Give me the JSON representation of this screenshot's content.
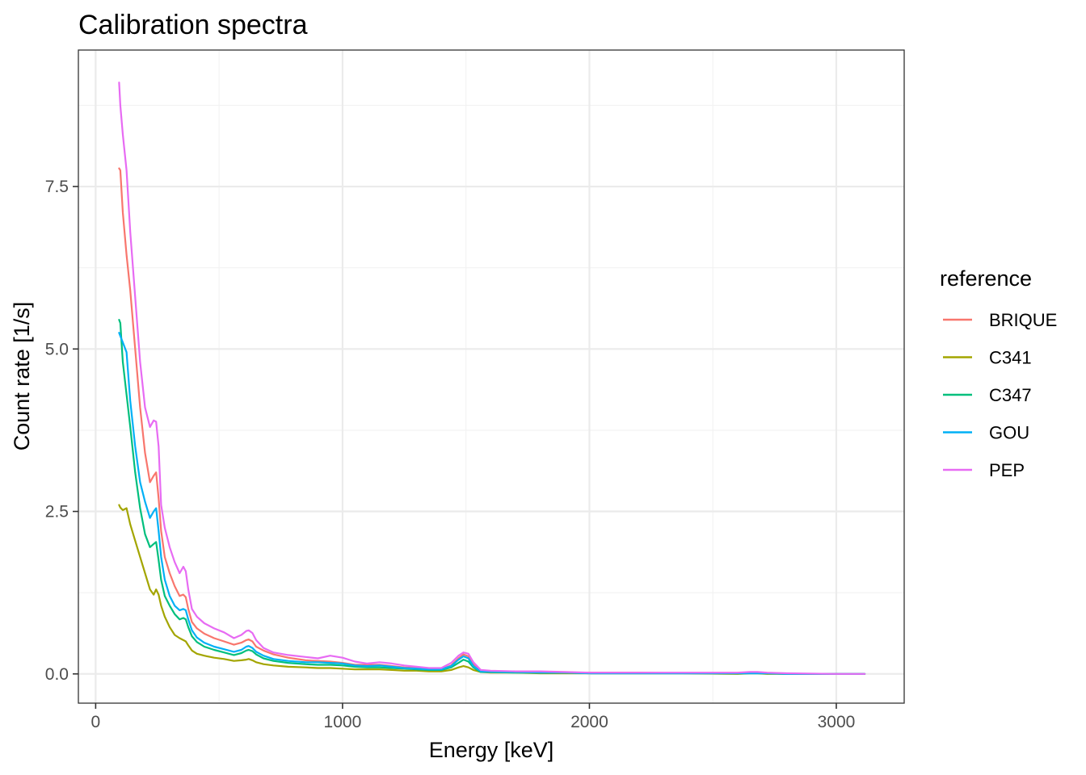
{
  "chart_data": {
    "type": "line",
    "title": "Calibration spectra",
    "xlabel": "Energy [keV]",
    "ylabel": "Count rate [1/s]",
    "xlim": [
      -70,
      3275
    ],
    "ylim": [
      -0.45,
      9.6
    ],
    "x_ticks": [
      0,
      1000,
      2000,
      3000
    ],
    "x_tick_labels": [
      "0",
      "1000",
      "2000",
      "3000"
    ],
    "y_ticks": [
      0,
      2.5,
      5,
      7.5
    ],
    "y_tick_labels": [
      "0.0",
      "2.5",
      "5.0",
      "7.5"
    ],
    "grid": true,
    "legend": {
      "title": "reference",
      "position": "right"
    },
    "x": [
      95,
      100,
      110,
      125,
      140,
      160,
      180,
      200,
      220,
      235,
      245,
      255,
      265,
      280,
      300,
      320,
      340,
      355,
      365,
      375,
      390,
      410,
      440,
      480,
      520,
      560,
      590,
      610,
      620,
      635,
      650,
      680,
      720,
      780,
      850,
      900,
      950,
      1000,
      1050,
      1100,
      1150,
      1200,
      1250,
      1300,
      1350,
      1400,
      1440,
      1470,
      1490,
      1510,
      1530,
      1560,
      1600,
      1700,
      1800,
      1900,
      2000,
      2200,
      2400,
      2600,
      2650,
      2680,
      2720,
      2800,
      3000,
      3115
    ],
    "series": [
      {
        "name": "BRIQUE",
        "color": "#F8766D",
        "values": [
          7.78,
          7.75,
          7.1,
          6.45,
          5.9,
          5.0,
          4.1,
          3.4,
          2.95,
          3.05,
          3.1,
          2.7,
          2.2,
          1.8,
          1.55,
          1.35,
          1.2,
          1.22,
          1.18,
          1.0,
          0.8,
          0.7,
          0.62,
          0.55,
          0.5,
          0.45,
          0.48,
          0.52,
          0.53,
          0.5,
          0.42,
          0.36,
          0.3,
          0.25,
          0.21,
          0.2,
          0.19,
          0.17,
          0.14,
          0.14,
          0.14,
          0.12,
          0.1,
          0.09,
          0.07,
          0.07,
          0.13,
          0.24,
          0.3,
          0.27,
          0.15,
          0.05,
          0.04,
          0.03,
          0.03,
          0.02,
          0.02,
          0.02,
          0.01,
          0.01,
          0.02,
          0.02,
          0.01,
          0.0,
          0.0,
          0.0
        ]
      },
      {
        "name": "C341",
        "color": "#A3A500",
        "values": [
          2.6,
          2.56,
          2.52,
          2.55,
          2.3,
          2.05,
          1.8,
          1.55,
          1.3,
          1.22,
          1.3,
          1.22,
          1.05,
          0.88,
          0.72,
          0.6,
          0.55,
          0.52,
          0.5,
          0.44,
          0.36,
          0.31,
          0.28,
          0.25,
          0.23,
          0.2,
          0.21,
          0.22,
          0.23,
          0.21,
          0.18,
          0.15,
          0.13,
          0.11,
          0.1,
          0.09,
          0.09,
          0.08,
          0.07,
          0.07,
          0.07,
          0.06,
          0.05,
          0.05,
          0.04,
          0.04,
          0.06,
          0.1,
          0.12,
          0.1,
          0.06,
          0.03,
          0.02,
          0.02,
          0.01,
          0.01,
          0.01,
          0.01,
          0.01,
          0.0,
          0.01,
          0.01,
          0.0,
          0.0,
          0.0,
          0.0
        ]
      },
      {
        "name": "C347",
        "color": "#00BF7D",
        "values": [
          5.45,
          5.4,
          4.8,
          4.3,
          3.8,
          3.1,
          2.55,
          2.15,
          1.95,
          2.0,
          2.03,
          1.75,
          1.45,
          1.2,
          1.05,
          0.92,
          0.84,
          0.86,
          0.84,
          0.72,
          0.58,
          0.49,
          0.42,
          0.37,
          0.33,
          0.29,
          0.32,
          0.36,
          0.37,
          0.35,
          0.3,
          0.24,
          0.2,
          0.17,
          0.15,
          0.14,
          0.14,
          0.13,
          0.11,
          0.1,
          0.1,
          0.09,
          0.08,
          0.07,
          0.06,
          0.06,
          0.1,
          0.17,
          0.22,
          0.19,
          0.1,
          0.03,
          0.03,
          0.02,
          0.02,
          0.02,
          0.01,
          0.01,
          0.01,
          0.01,
          0.01,
          0.01,
          0.01,
          0.0,
          0.0,
          0.0
        ]
      },
      {
        "name": "GOU",
        "color": "#00B0F6",
        "values": [
          5.25,
          5.2,
          5.1,
          4.95,
          4.2,
          3.5,
          2.95,
          2.65,
          2.4,
          2.5,
          2.55,
          2.2,
          1.8,
          1.45,
          1.2,
          1.05,
          0.98,
          1.0,
          0.98,
          0.84,
          0.67,
          0.56,
          0.48,
          0.42,
          0.38,
          0.34,
          0.37,
          0.42,
          0.43,
          0.4,
          0.34,
          0.28,
          0.23,
          0.2,
          0.18,
          0.18,
          0.17,
          0.16,
          0.13,
          0.12,
          0.13,
          0.11,
          0.09,
          0.08,
          0.07,
          0.07,
          0.12,
          0.22,
          0.27,
          0.24,
          0.12,
          0.04,
          0.03,
          0.03,
          0.02,
          0.02,
          0.01,
          0.01,
          0.01,
          0.01,
          0.01,
          0.01,
          0.01,
          0.0,
          0.0,
          0.0
        ]
      },
      {
        "name": "PEP",
        "color": "#E76BF3",
        "values": [
          9.1,
          8.75,
          8.3,
          7.75,
          6.8,
          5.8,
          4.8,
          4.1,
          3.8,
          3.9,
          3.88,
          3.5,
          2.6,
          2.25,
          1.95,
          1.72,
          1.55,
          1.65,
          1.58,
          1.3,
          1.0,
          0.88,
          0.78,
          0.7,
          0.64,
          0.55,
          0.6,
          0.66,
          0.67,
          0.63,
          0.52,
          0.4,
          0.33,
          0.29,
          0.26,
          0.24,
          0.28,
          0.25,
          0.19,
          0.16,
          0.18,
          0.16,
          0.13,
          0.11,
          0.09,
          0.09,
          0.17,
          0.28,
          0.33,
          0.31,
          0.18,
          0.06,
          0.05,
          0.04,
          0.04,
          0.03,
          0.02,
          0.02,
          0.02,
          0.02,
          0.03,
          0.03,
          0.02,
          0.01,
          0.0,
          0.0
        ]
      }
    ]
  }
}
